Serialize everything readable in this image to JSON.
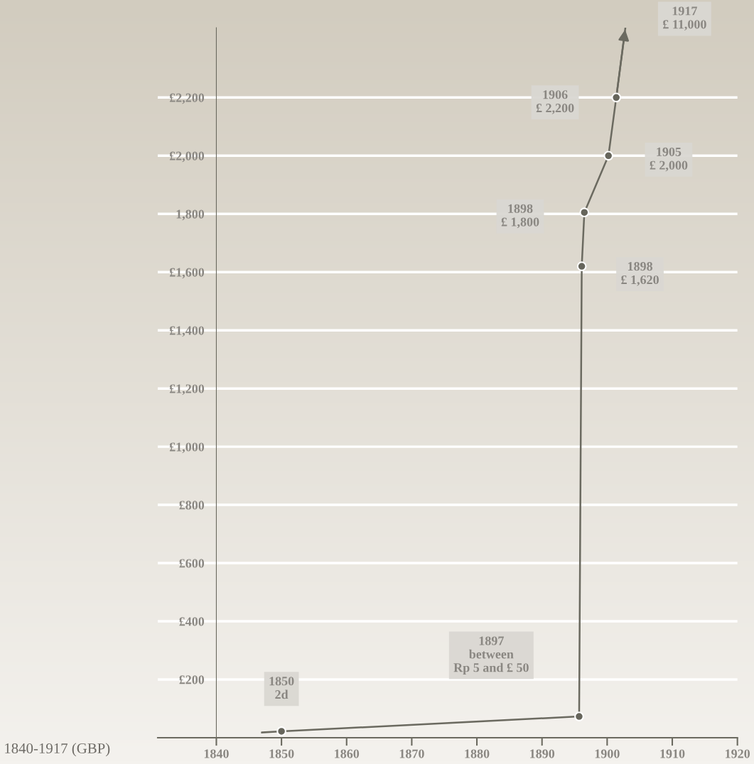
{
  "chart_data": {
    "type": "line",
    "x": [
      1847,
      1850,
      1895.7,
      1896.1,
      1896.5,
      1900.2,
      1901.4,
      1902.8
    ],
    "series": [
      {
        "color": "#6b6a60",
        "values": [
          18,
          22,
          73,
          1620,
          1805,
          2000,
          2200,
          2440
        ],
        "marker": "none"
      },
      {
        "type": "scatter",
        "color": "#66655b",
        "x": [
          1850,
          1895.7,
          1896.1,
          1896.5,
          1900.2,
          1901.4
        ],
        "values": [
          22,
          73,
          1620,
          1805,
          2000,
          2200
        ],
        "marker": "circle"
      }
    ],
    "xlim": [
      1831,
      1920
    ],
    "xticks": [
      1840,
      1850,
      1860,
      1870,
      1880,
      1890,
      1900,
      1910,
      1920
    ],
    "ylim": [
      0,
      2440
    ],
    "yticks": [
      {
        "value": 200,
        "label": "£200"
      },
      {
        "value": 400,
        "label": "£400"
      },
      {
        "value": 600,
        "label": "£600"
      },
      {
        "value": 800,
        "label": "£800"
      },
      {
        "value": 1000,
        "label": "£1,000"
      },
      {
        "value": 1200,
        "label": "£1,200"
      },
      {
        "value": 1400,
        "label": "£1,400"
      },
      {
        "value": 1600,
        "label": "£1,600"
      },
      {
        "value": 1800,
        "label": "1,800"
      },
      {
        "value": 2000,
        "label": "£2,000"
      },
      {
        "value": 2200,
        "label": "£2,200"
      }
    ],
    "grid": "y",
    "annotations": [
      "1850\n2d",
      "1897\nbetween\nRp 5 and £ 50",
      "1898\n£ 1,620",
      "1898\n£ 1,800",
      "1905\n£ 2,000",
      "1906\n£ 2,200",
      "1917\n£ 11,000",
      "1840-1917 (GBP)"
    ]
  }
}
